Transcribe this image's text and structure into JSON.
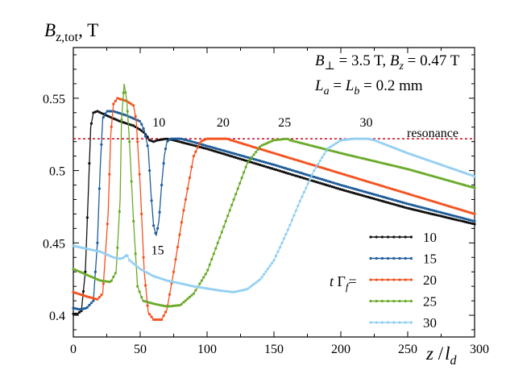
{
  "chart_data": {
    "type": "line",
    "title": "",
    "ylabel_main": "B",
    "ylabel_sub": "z,tot",
    "ylabel_unit": ", T",
    "xlabel_main": "z",
    "xlabel_sep": " /",
    "xlabel_l": "l",
    "xlabel_sub": "d",
    "xlim": [
      0,
      300
    ],
    "ylim": [
      0.385,
      0.585
    ],
    "x_ticks": [
      0,
      50,
      100,
      150,
      200,
      250,
      300
    ],
    "x_tick_labels": [
      "0",
      "50",
      "100",
      "150",
      "200",
      "250",
      "300"
    ],
    "y_ticks": [
      0.4,
      0.45,
      0.5,
      0.55
    ],
    "y_tick_labels": [
      "0.4",
      "0.45",
      "0.5",
      "0.55"
    ],
    "params_line1": {
      "B": "B",
      "perp": "⊥",
      "eq1": " = 3.5 T, ",
      "B2": "B",
      "z": "z",
      "eq2": " = 0.47 T"
    },
    "params_line2": {
      "L": "L",
      "a": "a",
      "eq": " = ",
      "L2": "L",
      "b": "b",
      "val": " = 0.2 mm"
    },
    "resonance": {
      "value": 0.522,
      "label": "resonance",
      "color": "#d0021b"
    },
    "legend_prefix": {
      "t": "t ",
      "G": "Γ",
      "f": "f",
      "eq": "="
    },
    "annotations": [
      {
        "text": "10",
        "x": 64,
        "y": 0.5305
      },
      {
        "text": "20",
        "x": 112,
        "y": 0.5305
      },
      {
        "text": "25",
        "x": 158,
        "y": 0.5305
      },
      {
        "text": "30",
        "x": 219,
        "y": 0.5305
      },
      {
        "text": "15",
        "x": 63,
        "y": 0.4422
      }
    ],
    "series": [
      {
        "name": "10",
        "color": "#111111",
        "points": [
          [
            0,
            0.401
          ],
          [
            3,
            0.401
          ],
          [
            6,
            0.403
          ],
          [
            9,
            0.43
          ],
          [
            11,
            0.48
          ],
          [
            13,
            0.53
          ],
          [
            15,
            0.54
          ],
          [
            18,
            0.541
          ],
          [
            25,
            0.538
          ],
          [
            35,
            0.534
          ],
          [
            45,
            0.531
          ],
          [
            52,
            0.527
          ],
          [
            55,
            0.524
          ],
          [
            57,
            0.521
          ],
          [
            60,
            0.52
          ],
          [
            63,
            0.521
          ],
          [
            70,
            0.522
          ],
          [
            75,
            0.521
          ],
          [
            100,
            0.515
          ],
          [
            150,
            0.501
          ],
          [
            200,
            0.487
          ],
          [
            250,
            0.474
          ],
          [
            300,
            0.463
          ]
        ]
      },
      {
        "name": "15",
        "color": "#1f5c99",
        "points": [
          [
            0,
            0.405
          ],
          [
            5,
            0.404
          ],
          [
            10,
            0.405
          ],
          [
            15,
            0.41
          ],
          [
            18,
            0.45
          ],
          [
            20,
            0.5
          ],
          [
            22,
            0.536
          ],
          [
            25,
            0.541
          ],
          [
            30,
            0.541
          ],
          [
            40,
            0.538
          ],
          [
            50,
            0.534
          ],
          [
            53,
            0.528
          ],
          [
            56,
            0.515
          ],
          [
            58,
            0.485
          ],
          [
            60,
            0.462
          ],
          [
            62,
            0.455
          ],
          [
            64,
            0.465
          ],
          [
            66,
            0.49
          ],
          [
            68,
            0.51
          ],
          [
            70,
            0.52
          ],
          [
            73,
            0.522
          ],
          [
            80,
            0.522
          ],
          [
            85,
            0.521
          ],
          [
            100,
            0.517
          ],
          [
            150,
            0.504
          ],
          [
            200,
            0.49
          ],
          [
            250,
            0.477
          ],
          [
            300,
            0.465
          ]
        ]
      },
      {
        "name": "20",
        "color": "#f4511e",
        "points": [
          [
            0,
            0.416
          ],
          [
            10,
            0.413
          ],
          [
            18,
            0.411
          ],
          [
            22,
            0.415
          ],
          [
            26,
            0.47
          ],
          [
            28,
            0.525
          ],
          [
            30,
            0.546
          ],
          [
            33,
            0.55
          ],
          [
            40,
            0.548
          ],
          [
            45,
            0.545
          ],
          [
            47,
            0.535
          ],
          [
            50,
            0.49
          ],
          [
            53,
            0.43
          ],
          [
            56,
            0.402
          ],
          [
            60,
            0.397
          ],
          [
            66,
            0.397
          ],
          [
            70,
            0.404
          ],
          [
            75,
            0.43
          ],
          [
            82,
            0.47
          ],
          [
            90,
            0.51
          ],
          [
            95,
            0.52
          ],
          [
            100,
            0.522
          ],
          [
            115,
            0.522
          ],
          [
            118,
            0.521
          ],
          [
            150,
            0.512
          ],
          [
            200,
            0.498
          ],
          [
            250,
            0.484
          ],
          [
            300,
            0.47
          ]
        ]
      },
      {
        "name": "25",
        "color": "#6aaa2a",
        "points": [
          [
            0,
            0.432
          ],
          [
            10,
            0.428
          ],
          [
            20,
            0.424
          ],
          [
            28,
            0.423
          ],
          [
            32,
            0.43
          ],
          [
            35,
            0.48
          ],
          [
            36,
            0.535
          ],
          [
            38,
            0.56
          ],
          [
            40,
            0.548
          ],
          [
            42,
            0.52
          ],
          [
            45,
            0.465
          ],
          [
            48,
            0.42
          ],
          [
            52,
            0.41
          ],
          [
            60,
            0.408
          ],
          [
            70,
            0.406
          ],
          [
            80,
            0.407
          ],
          [
            90,
            0.415
          ],
          [
            100,
            0.43
          ],
          [
            110,
            0.455
          ],
          [
            120,
            0.48
          ],
          [
            130,
            0.505
          ],
          [
            140,
            0.517
          ],
          [
            150,
            0.521
          ],
          [
            160,
            0.522
          ],
          [
            162,
            0.521
          ],
          [
            200,
            0.512
          ],
          [
            250,
            0.501
          ],
          [
            300,
            0.488
          ]
        ]
      },
      {
        "name": "30",
        "color": "#93cff2",
        "points": [
          [
            0,
            0.448
          ],
          [
            20,
            0.444
          ],
          [
            30,
            0.44
          ],
          [
            35,
            0.439
          ],
          [
            38,
            0.44
          ],
          [
            40,
            0.442
          ],
          [
            42,
            0.438
          ],
          [
            50,
            0.432
          ],
          [
            60,
            0.427
          ],
          [
            70,
            0.424
          ],
          [
            90,
            0.42
          ],
          [
            110,
            0.417
          ],
          [
            120,
            0.416
          ],
          [
            130,
            0.418
          ],
          [
            140,
            0.425
          ],
          [
            150,
            0.438
          ],
          [
            160,
            0.458
          ],
          [
            170,
            0.48
          ],
          [
            180,
            0.5
          ],
          [
            190,
            0.515
          ],
          [
            200,
            0.521
          ],
          [
            210,
            0.522
          ],
          [
            220,
            0.522
          ],
          [
            225,
            0.521
          ],
          [
            250,
            0.512
          ],
          [
            300,
            0.496
          ]
        ]
      }
    ],
    "legend": [
      {
        "label": "10",
        "color": "#111111"
      },
      {
        "label": "15",
        "color": "#1f5c99"
      },
      {
        "label": "20",
        "color": "#f4511e"
      },
      {
        "label": "25",
        "color": "#6aaa2a"
      },
      {
        "label": "30",
        "color": "#93cff2"
      }
    ]
  }
}
